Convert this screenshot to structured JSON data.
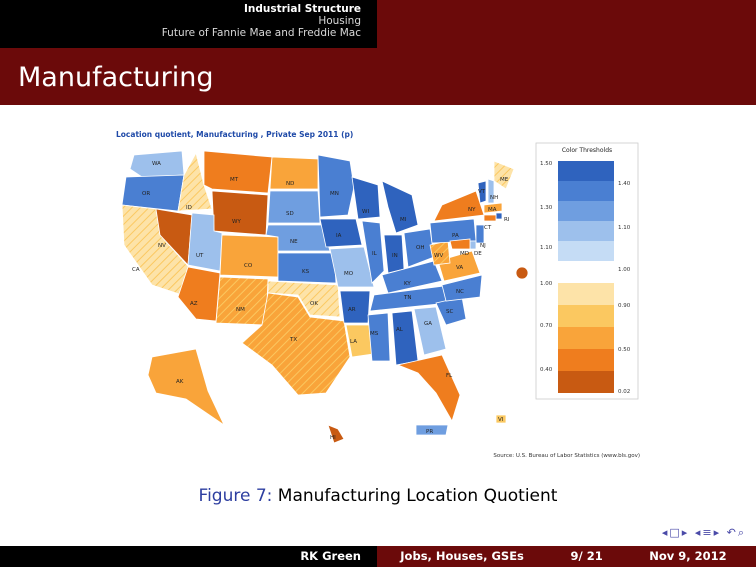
{
  "header": {
    "nav": [
      {
        "label": "Industrial Structure",
        "active": true
      },
      {
        "label": "Housing",
        "active": false
      },
      {
        "label": "Future of Fannie Mae and Freddie Mac",
        "active": false
      }
    ],
    "title": "Manufacturing"
  },
  "figure": {
    "map_title": "Location quotient, Manufacturing , Private Sep 2011 (p)",
    "source": "Source: U.S. Bureau of Labor Statistics (www.bls.gov)",
    "legend": {
      "title": "Color Thresholds",
      "top_group": {
        "axis": [
          "1.50",
          "1.30",
          "1.10"
        ],
        "side": [
          "1.40",
          "1.10",
          "1.00"
        ]
      },
      "bottom_group": {
        "axis": [
          "1.00",
          "0.70",
          "0.40"
        ],
        "side": [
          "0.90",
          "0.50",
          "0.02"
        ]
      },
      "colors_top": [
        "#2f63be",
        "#4a7fd2",
        "#6f9ee0",
        "#9dc0ec",
        "#c5dcf5"
      ],
      "colors_bottom": [
        "#fde3a8",
        "#fbc860",
        "#f9a43a",
        "#ef7d1e",
        "#c85a12"
      ]
    },
    "states": [
      "WA",
      "OR",
      "CA",
      "ID",
      "NV",
      "MT",
      "WY",
      "UT",
      "AZ",
      "CO",
      "NM",
      "ND",
      "SD",
      "NE",
      "KS",
      "OK",
      "TX",
      "MN",
      "IA",
      "MO",
      "AR",
      "LA",
      "WI",
      "IL",
      "MI",
      "IN",
      "OH",
      "KY",
      "TN",
      "MS",
      "AL",
      "GA",
      "FL",
      "SC",
      "NC",
      "VA",
      "WV",
      "PA",
      "NY",
      "VT",
      "NH",
      "ME",
      "MA",
      "RI",
      "CT",
      "NJ",
      "DE",
      "MD",
      "AK",
      "HI",
      "PR",
      "VI"
    ]
  },
  "caption": {
    "label": "Figure 7:",
    "text": "Manufacturing Location Quotient"
  },
  "footer": {
    "author": "RK Green",
    "short_title": "Jobs, Houses, GSEs",
    "page": "9/ 21",
    "date": "Nov 9, 2012"
  }
}
